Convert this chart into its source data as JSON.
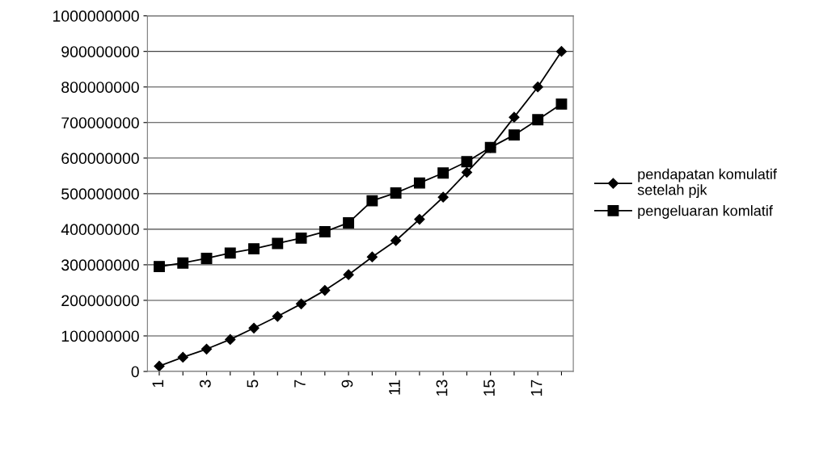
{
  "chart_data": {
    "type": "line",
    "categories": [
      "1",
      null,
      "3",
      null,
      "5",
      null,
      "7",
      null,
      "9",
      null,
      "11",
      null,
      "13",
      null,
      "15",
      null,
      "17",
      null
    ],
    "series": [
      {
        "name": "pendapatan komulatif\nsetelah pjk",
        "color": "#000000",
        "marker": "diamond",
        "values": [
          15000000,
          40000000,
          63000000,
          90000000,
          122000000,
          155000000,
          190000000,
          228000000,
          272000000,
          322000000,
          368000000,
          428000000,
          490000000,
          560000000,
          630000000,
          715000000,
          800000000,
          900000000
        ]
      },
      {
        "name": "pengeluaran komlatif",
        "color": "#000000",
        "marker": "square",
        "values": [
          295000000,
          305000000,
          318000000,
          333000000,
          345000000,
          360000000,
          375000000,
          393000000,
          418000000,
          480000000,
          502000000,
          530000000,
          558000000,
          590000000,
          630000000,
          665000000,
          708000000,
          752000000
        ]
      }
    ],
    "ylim": [
      0,
      1000000000
    ],
    "yticks": [
      0,
      100000000,
      200000000,
      300000000,
      400000000,
      500000000,
      600000000,
      700000000,
      800000000,
      900000000,
      1000000000
    ],
    "grid": "y",
    "legend": "right",
    "line_style": "solid"
  }
}
